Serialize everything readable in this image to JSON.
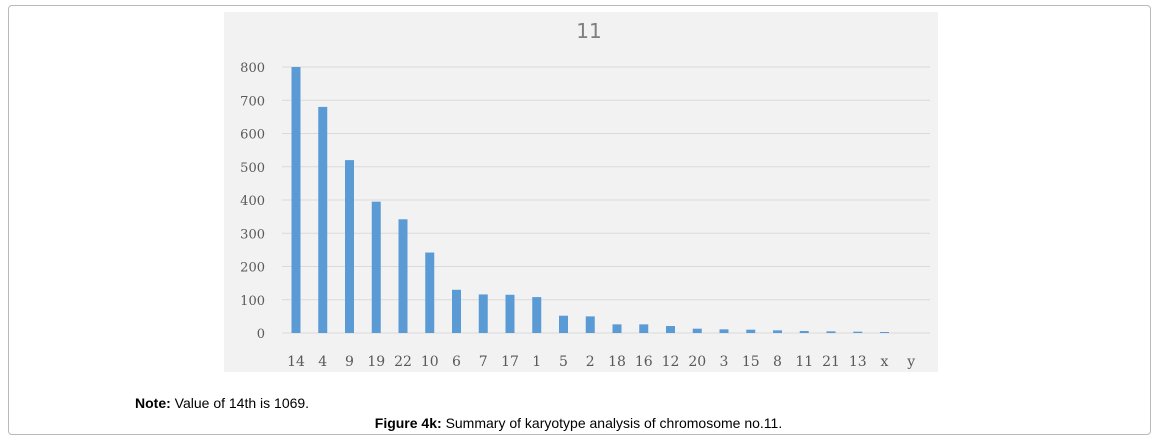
{
  "chart_data": {
    "type": "bar",
    "title": "11",
    "categories": [
      "14",
      "4",
      "9",
      "19",
      "22",
      "10",
      "6",
      "7",
      "17",
      "1",
      "5",
      "2",
      "18",
      "16",
      "12",
      "20",
      "3",
      "15",
      "8",
      "11",
      "21",
      "13",
      "x",
      "y"
    ],
    "values": [
      800,
      680,
      520,
      395,
      342,
      242,
      130,
      116,
      115,
      108,
      52,
      50,
      26,
      26,
      21,
      13,
      11,
      10,
      8,
      6,
      5,
      4,
      3,
      0
    ],
    "ylim": [
      0,
      800
    ],
    "yticks": [
      "0",
      "100",
      "200",
      "300",
      "400",
      "500",
      "600",
      "700",
      "800"
    ],
    "grid": true,
    "bar_color": "#5b9bd5"
  },
  "note": {
    "label": "Note:",
    "text": "Value of 14th is 1069."
  },
  "caption": {
    "label": "Figure 4k:",
    "text": "Summary of karyotype analysis of chromosome no.11."
  }
}
